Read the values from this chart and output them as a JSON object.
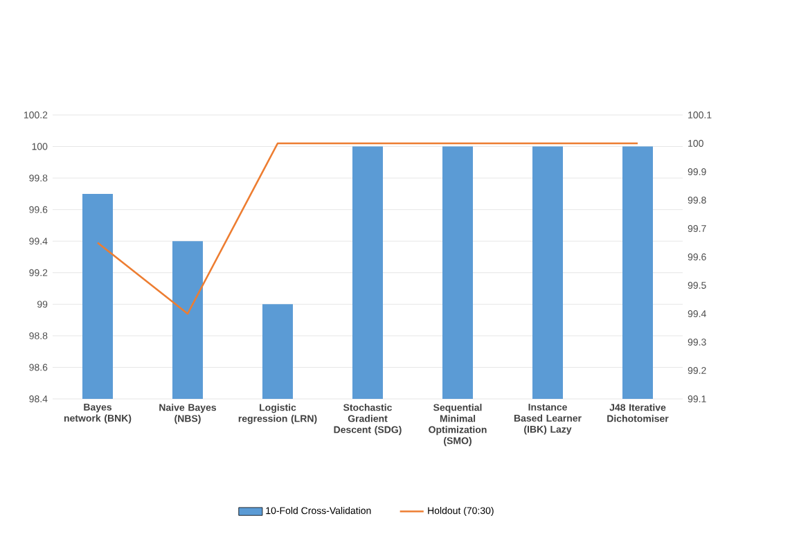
{
  "chart_data": {
    "type": "bar",
    "categories": [
      "Bayes network (BNK)",
      "Naive Bayes (NBS)",
      "Logistic regression (LRN)",
      "Stochastic Gradient Descent (SDG)",
      "Sequential Minimal Optimization (SMO)",
      "Instance Based Learner (IBK) Lazy",
      "J48 Iterative Dichotomiser"
    ],
    "series": [
      {
        "name": "10-Fold Cross-Validation",
        "color": "#5b9bd5",
        "values": [
          99.7,
          99.4,
          99.0,
          100,
          100,
          100,
          100
        ]
      },
      {
        "name": "Holdout (70:30)",
        "type": "line",
        "axis": "y2",
        "color": "#ed7d31",
        "values": [
          99.65,
          99.4,
          100,
          100,
          100,
          100,
          100
        ]
      }
    ],
    "ylim": [
      98.4,
      100.2
    ],
    "yticks": [
      98.4,
      98.6,
      98.8,
      99,
      99.2,
      99.4,
      99.6,
      99.8,
      100,
      100.2
    ],
    "y2lim": [
      99.1,
      100.1
    ],
    "y2ticks": [
      99.1,
      99.2,
      99.3,
      99.4,
      99.5,
      99.6,
      99.7,
      99.8,
      99.9,
      100,
      100.1
    ],
    "grid": "y",
    "legend": "bottom",
    "marker": "none"
  }
}
